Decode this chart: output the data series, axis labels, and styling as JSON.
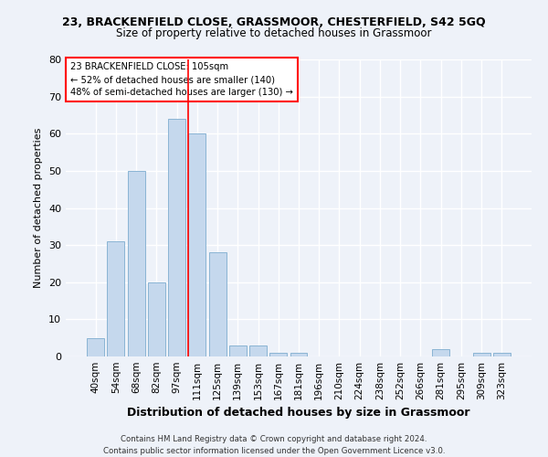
{
  "title_line1": "23, BRACKENFIELD CLOSE, GRASSMOOR, CHESTERFIELD, S42 5GQ",
  "title_line2": "Size of property relative to detached houses in Grassmoor",
  "xlabel": "Distribution of detached houses by size in Grassmoor",
  "ylabel": "Number of detached properties",
  "bar_color": "#c5d8ed",
  "bar_edge_color": "#8ab4d4",
  "categories": [
    "40sqm",
    "54sqm",
    "68sqm",
    "82sqm",
    "97sqm",
    "111sqm",
    "125sqm",
    "139sqm",
    "153sqm",
    "167sqm",
    "181sqm",
    "196sqm",
    "210sqm",
    "224sqm",
    "238sqm",
    "252sqm",
    "266sqm",
    "281sqm",
    "295sqm",
    "309sqm",
    "323sqm"
  ],
  "values": [
    5,
    31,
    50,
    20,
    64,
    60,
    28,
    3,
    3,
    1,
    1,
    0,
    0,
    0,
    0,
    0,
    0,
    2,
    0,
    1,
    1
  ],
  "ylim": [
    0,
    80
  ],
  "yticks": [
    0,
    10,
    20,
    30,
    40,
    50,
    60,
    70,
    80
  ],
  "annotation_line1": "23 BRACKENFIELD CLOSE: 105sqm",
  "annotation_line2": "← 52% of detached houses are smaller (140)",
  "annotation_line3": "48% of semi-detached houses are larger (130) →",
  "vline_x": 4.57,
  "footer_line1": "Contains HM Land Registry data © Crown copyright and database right 2024.",
  "footer_line2": "Contains public sector information licensed under the Open Government Licence v3.0.",
  "background_color": "#eef2f9",
  "grid_color": "#ffffff"
}
